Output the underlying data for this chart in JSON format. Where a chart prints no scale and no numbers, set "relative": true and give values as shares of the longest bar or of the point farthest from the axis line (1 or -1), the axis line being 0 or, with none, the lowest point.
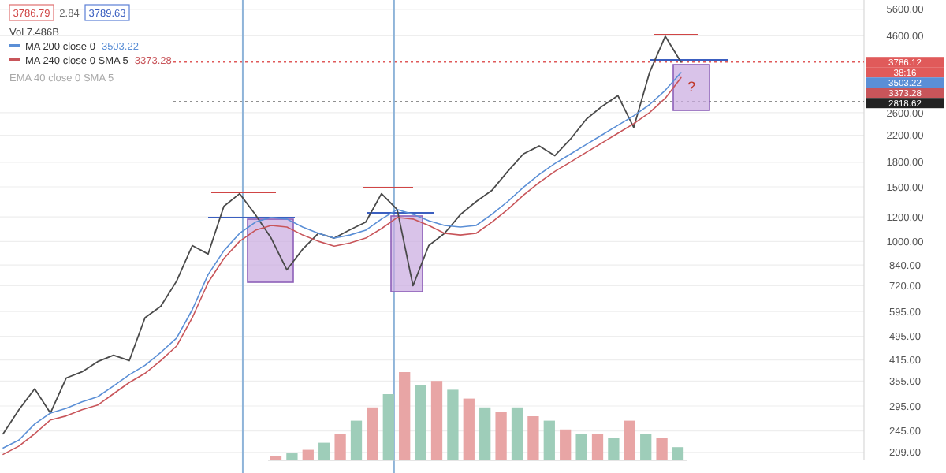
{
  "chart_data": [
    {
      "type": "line",
      "categories": [
        null,
        null,
        null,
        null,
        null,
        null,
        null,
        null,
        null,
        null,
        null,
        null,
        null,
        null,
        null,
        null,
        null,
        null,
        null,
        null,
        null,
        null,
        null,
        null,
        null,
        null,
        null,
        null,
        null,
        null,
        null,
        null,
        null,
        null,
        null,
        null,
        null,
        null,
        null,
        null,
        null,
        null,
        null,
        null
      ],
      "series": [
        {
          "color": "#4a4a4a",
          "values": [
            240,
            287,
            335,
            280,
            363,
            380,
            410,
            430,
            413,
            568,
            618,
            745,
            970,
            911,
            1298,
            1426,
            1220,
            1025,
            810,
            944,
            1062,
            1025,
            1090,
            1154,
            1426,
            1267,
            720,
            970,
            1062,
            1220,
            1344,
            1460,
            1680,
            1915,
            2032,
            1890,
            2140,
            2480,
            2729,
            2950,
            2330,
            3500,
            4583,
            3786.12
          ]
        },
        {
          "name": "MA 200 close 0",
          "color": "#5b8fd6",
          "values": [
            216,
            229,
            258,
            280,
            290,
            304,
            316,
            342,
            372,
            399,
            439,
            488,
            603,
            782,
            933,
            1062,
            1154,
            1195,
            1181,
            1113,
            1062,
            1025,
            1049,
            1087,
            1181,
            1267,
            1223,
            1167,
            1126,
            1113,
            1126,
            1223,
            1344,
            1494,
            1643,
            1784,
            1915,
            2055,
            2206,
            2368,
            2541,
            2760,
            3070,
            3503.22
          ]
        },
        {
          "name": "MA 240 close 0 SMA 5",
          "color": "#c8555a",
          "values": [
            206,
            219,
            240,
            266,
            274,
            287,
            297,
            323,
            351,
            376,
            413,
            460,
            568,
            737,
            881,
            1001,
            1087,
            1126,
            1113,
            1049,
            1001,
            966,
            989,
            1025,
            1100,
            1195,
            1181,
            1126,
            1062,
            1049,
            1062,
            1154,
            1267,
            1409,
            1548,
            1682,
            1805,
            1938,
            2080,
            2232,
            2396,
            2602,
            2894,
            3373.28
          ]
        }
      ],
      "log": true,
      "ylim": [
        197,
        6000
      ],
      "yticks": [
        {
          "value": 209,
          "label": "209.00"
        },
        {
          "value": 245,
          "label": "245.00"
        },
        {
          "value": 295,
          "label": "295.00"
        },
        {
          "value": 355,
          "label": "355.00"
        },
        {
          "value": 415,
          "label": "415.00"
        },
        {
          "value": 495,
          "label": "495.00"
        },
        {
          "value": 595,
          "label": "595.00"
        },
        {
          "value": 720,
          "label": "720.00"
        },
        {
          "value": 840,
          "label": "840.00"
        },
        {
          "value": 1000,
          "label": "1000.00"
        },
        {
          "value": 1200,
          "label": "1200.00"
        },
        {
          "value": 1500,
          "label": "1500.00"
        },
        {
          "value": 1800,
          "label": "1800.00"
        },
        {
          "value": 2200,
          "label": "2200.00"
        },
        {
          "value": 2600,
          "label": "2600.00"
        },
        {
          "value": 4600,
          "label": "4600.00"
        },
        {
          "value": 5600,
          "label": "5600.00"
        }
      ],
      "grid": "y",
      "legend": "top left",
      "tick_labels": "y",
      "ref_lines": [
        {
          "axis": "y",
          "value": 3786.12,
          "label": "3786.12",
          "color": "#e05a5a",
          "line_style": "dotted"
        },
        {
          "axis": "y",
          "value": 2818.62,
          "label": "2818.62",
          "color": "#222222",
          "line_style": "dotted"
        }
      ],
      "annotations": [
        "3786.79",
        "2.84",
        "3789.63",
        "Vol 7.486B",
        "EMA 40 close 0 SMA 5",
        "38:16",
        "?",
        "3503.22",
        "3373.28"
      ]
    },
    {
      "type": "bar",
      "relative": true,
      "categories": [
        null,
        null,
        null,
        null,
        null,
        null,
        null,
        null,
        null,
        null,
        null,
        null,
        null,
        null,
        null,
        null,
        null,
        null,
        null,
        null,
        null,
        null,
        null,
        null,
        null,
        null
      ],
      "values": [
        0.05,
        0.08,
        0.12,
        0.2,
        0.3,
        0.45,
        0.6,
        0.75,
        1,
        0.85,
        0.9,
        0.8,
        0.7,
        0.6,
        0.55,
        0.6,
        0.5,
        0.45,
        0.35,
        0.3,
        0.3,
        0.25,
        0.45,
        0.3,
        0.25,
        0.15
      ],
      "colors": [
        "#e8a5a5",
        "#9ecdb9",
        "#e8a5a5",
        "#9ecdb9",
        "#e8a5a5",
        "#9ecdb9",
        "#e8a5a5",
        "#9ecdb9",
        "#e8a5a5",
        "#9ecdb9",
        "#e8a5a5",
        "#9ecdb9",
        "#e8a5a5",
        "#9ecdb9",
        "#e8a5a5",
        "#9ecdb9",
        "#e8a5a5",
        "#9ecdb9",
        "#e8a5a5",
        "#9ecdb9",
        "#e8a5a5",
        "#9ecdb9",
        "#e8a5a5",
        "#9ecdb9",
        "#e8a5a5",
        "#9ecdb9"
      ]
    }
  ]
}
